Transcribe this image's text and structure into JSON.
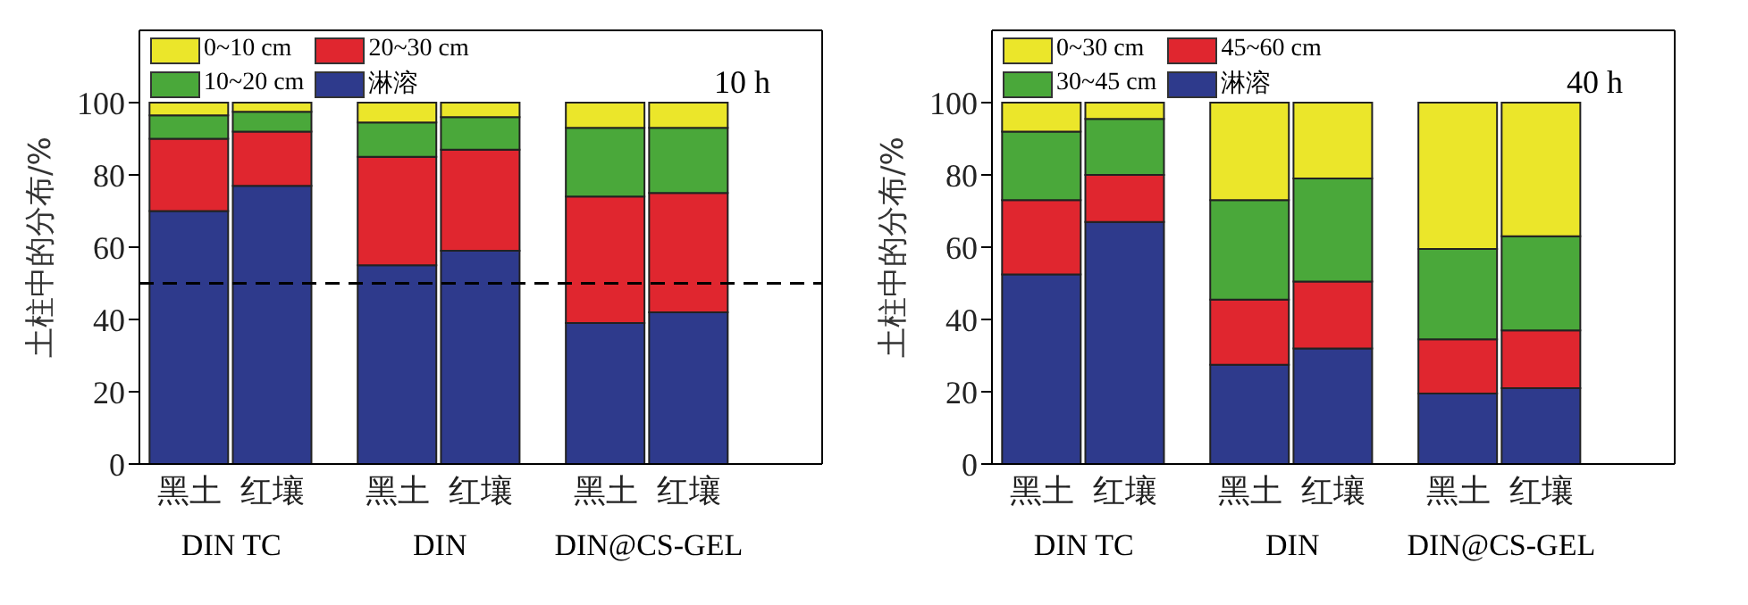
{
  "chart_data": [
    {
      "type": "bar",
      "title": "10 h",
      "ylabel": "土柱中的分布/%",
      "categories": [
        "黑土",
        "红壤",
        "黑土",
        "红壤",
        "黑土",
        "红壤"
      ],
      "stacked": true,
      "ylim": [
        0,
        120
      ],
      "yticks": [
        0,
        20,
        40,
        60,
        80,
        100
      ],
      "grid": false,
      "legend": "top left",
      "series": [
        {
          "name": "淋溶",
          "color": "#2e3a8c",
          "values": [
            70,
            77,
            55,
            59,
            39,
            42
          ]
        },
        {
          "name": "20~30 cm",
          "color": "#e0262f",
          "values": [
            20,
            15,
            30,
            28,
            35,
            33
          ]
        },
        {
          "name": "10~20 cm",
          "color": "#4aa83a",
          "values": [
            6.5,
            5.5,
            9.5,
            9,
            19,
            18
          ]
        },
        {
          "name": "0~10 cm",
          "color": "#ebe62a",
          "values": [
            3.5,
            2.5,
            5.5,
            4,
            7,
            7
          ]
        }
      ],
      "ref_lines": [
        {
          "axis": "y",
          "value": 50,
          "line_style": "dashed",
          "color": "#000000"
        }
      ],
      "annotations": [
        "DIN TC",
        "DIN",
        "DIN@CS-GEL"
      ]
    },
    {
      "type": "bar",
      "title": "40 h",
      "ylabel": "土柱中的分布/%",
      "categories": [
        "黑土",
        "红壤",
        "黑土",
        "红壤",
        "黑土",
        "红壤"
      ],
      "stacked": true,
      "ylim": [
        0,
        120
      ],
      "yticks": [
        0,
        20,
        40,
        60,
        80,
        100
      ],
      "grid": false,
      "legend": "top left",
      "series": [
        {
          "name": "淋溶",
          "color": "#2e3a8c",
          "values": [
            52.5,
            67,
            27.5,
            32,
            19.5,
            21
          ]
        },
        {
          "name": "45~60 cm",
          "color": "#e0262f",
          "values": [
            20.5,
            13,
            18,
            18.5,
            15,
            16
          ]
        },
        {
          "name": "30~45 cm",
          "color": "#4aa83a",
          "values": [
            19,
            15.5,
            27.5,
            28.5,
            25,
            26
          ]
        },
        {
          "name": "0~30 cm",
          "color": "#ebe62a",
          "values": [
            8,
            4.5,
            27,
            21,
            40.5,
            37
          ]
        }
      ],
      "annotations": [
        "DIN TC",
        "DIN",
        "DIN@CS-GEL"
      ]
    }
  ]
}
